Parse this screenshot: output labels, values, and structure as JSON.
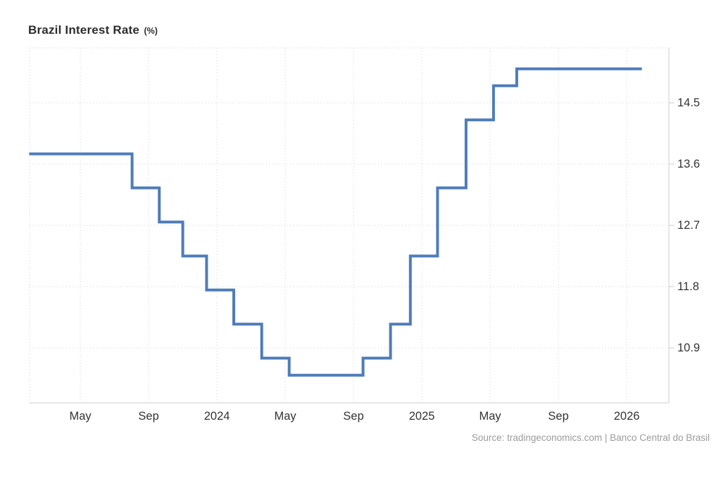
{
  "header": {
    "title": "Brazil Interest Rate",
    "unit": "(%)"
  },
  "footer": {
    "source": "Source: tradingeconomics.com | Banco Central do Brasil"
  },
  "colors": {
    "line": "#4e7cba",
    "grid": "#dedede",
    "axis": "#cccccc",
    "text": "#333333",
    "source_text": "#9b9b9b",
    "background": "#ffffff"
  },
  "chart_data": {
    "type": "line",
    "subtype": "step",
    "title": "Brazil Interest Rate (%)",
    "xlabel": "",
    "ylabel": "",
    "unit": "%",
    "grid": "dotted",
    "legend": "none",
    "ylim": [
      10.09,
      15.31
    ],
    "xlim": [
      "2023-02-01",
      "2026-03-15"
    ],
    "y_ticks": [
      14.5,
      13.6,
      12.7,
      11.8,
      10.9
    ],
    "x_ticks": [
      {
        "date": "2023-05-01",
        "label": "May"
      },
      {
        "date": "2023-09-01",
        "label": "Sep"
      },
      {
        "date": "2024-01-01",
        "label": "2024"
      },
      {
        "date": "2024-05-01",
        "label": "May"
      },
      {
        "date": "2024-09-01",
        "label": "Sep"
      },
      {
        "date": "2025-01-01",
        "label": "2025"
      },
      {
        "date": "2025-05-01",
        "label": "May"
      },
      {
        "date": "2025-09-01",
        "label": "Sep"
      },
      {
        "date": "2026-01-01",
        "label": "2026"
      }
    ],
    "series": [
      {
        "name": "Brazil Interest Rate (%)",
        "step": true,
        "points": [
          {
            "date": "2023-02-01",
            "value": 13.75
          },
          {
            "date": "2023-08-02",
            "value": 13.25
          },
          {
            "date": "2023-09-20",
            "value": 12.75
          },
          {
            "date": "2023-11-01",
            "value": 12.25
          },
          {
            "date": "2023-12-13",
            "value": 11.75
          },
          {
            "date": "2024-01-31",
            "value": 11.25
          },
          {
            "date": "2024-03-20",
            "value": 10.75
          },
          {
            "date": "2024-05-08",
            "value": 10.5
          },
          {
            "date": "2024-09-18",
            "value": 10.75
          },
          {
            "date": "2024-11-06",
            "value": 11.25
          },
          {
            "date": "2024-12-11",
            "value": 12.25
          },
          {
            "date": "2025-01-29",
            "value": 13.25
          },
          {
            "date": "2025-03-19",
            "value": 14.25
          },
          {
            "date": "2025-05-07",
            "value": 14.75
          },
          {
            "date": "2025-06-18",
            "value": 15.0
          },
          {
            "date": "2026-01-28",
            "value": 15.0
          }
        ]
      }
    ]
  }
}
